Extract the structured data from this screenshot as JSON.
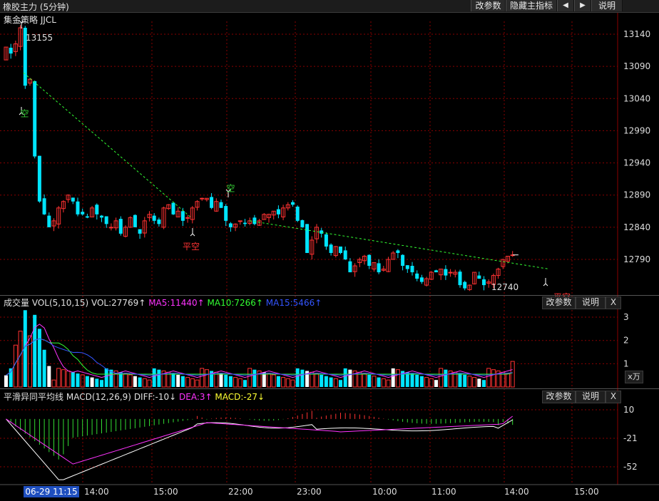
{
  "window": {
    "title": "橡胶主力 (5分钟)"
  },
  "toolbar": {
    "params_label": "改参数",
    "hide_label": "隐藏主指标",
    "left_arrow": "◀",
    "right_arrow": "▶",
    "help_label": "说明"
  },
  "main_panel": {
    "strategy_label": "集金策略 JJCL",
    "y_ticks": [
      "13140",
      "13090",
      "13040",
      "12990",
      "12940",
      "12890",
      "12840",
      "12790"
    ],
    "high_label": "13155",
    "low_label": "12740",
    "annotations": [
      {
        "text": "空",
        "color": "#33cc33"
      },
      {
        "text": "平空",
        "color": "#ff3333"
      },
      {
        "text": "空",
        "color": "#33cc33"
      },
      {
        "text": "平空",
        "color": "#ff3333"
      }
    ]
  },
  "volume_panel": {
    "name": "成交量",
    "formula": "VOL(5,10,15)",
    "vol": "VOL:27769↑",
    "ma5": "MA5:11440↑",
    "ma10": "MA10:7266↑",
    "ma15": "MA15:5466↑",
    "y_ticks": [
      "3",
      "2",
      "1"
    ],
    "unit_label": "x万",
    "params_label": "改参数",
    "help_label": "说明",
    "close_label": "X"
  },
  "macd_panel": {
    "name": "平滑异同平均线",
    "formula": "MACD(12,26,9)",
    "diff": "DIFF:-10↓",
    "dea": "DEA:3↑",
    "macd": "MACD:-27↓",
    "y_ticks": [
      "10",
      "-21",
      "-52"
    ],
    "params_label": "改参数",
    "help_label": "说明",
    "close_label": "X"
  },
  "time_axis": {
    "cursor_label": "06-29 11:15",
    "labels": [
      "14:00",
      "15:00",
      "22:00",
      "23:00",
      "10:00",
      "11:00",
      "14:00",
      "15:00"
    ]
  },
  "colors": {
    "up": "#ff3232",
    "down": "#00e5ff",
    "ma5": "#ff33ff",
    "ma10": "#33ff33",
    "ma15": "#3355ff",
    "diff": "#ffffff",
    "dea": "#ff33ff",
    "grid": "#8b0000"
  },
  "chart_data": {
    "type": "candlestick",
    "interval": "5分钟",
    "closes": [
      13120,
      13110,
      13125,
      13150,
      13060,
      13070,
      12950,
      12880,
      12860,
      12840,
      12850,
      12870,
      12880,
      12890,
      12880,
      12860,
      12860,
      12855,
      12870,
      12860,
      12855,
      12845,
      12840,
      12850,
      12830,
      12840,
      12855,
      12840,
      12830,
      12850,
      12860,
      12850,
      12845,
      12870,
      12875,
      12860,
      12865,
      12850,
      12855,
      12870,
      12880,
      12885,
      12885,
      12870,
      12880,
      12870,
      12850,
      12840,
      12845,
      12850,
      12845,
      12850,
      12845,
      12850,
      12860,
      12860,
      12865,
      12860,
      12870,
      12875,
      12875,
      12850,
      12840,
      12800,
      12820,
      12840,
      12830,
      12810,
      12800,
      12810,
      12800,
      12790,
      12770,
      12780,
      12790,
      12795,
      12780,
      12785,
      12770,
      12775,
      12790,
      12800,
      12800,
      12780,
      12775,
      12770,
      12760,
      12755,
      12760,
      12770,
      12770,
      12775,
      12765,
      12770,
      12770,
      12750,
      12745,
      12750,
      12770,
      12760,
      12750,
      12755,
      12765,
      12775,
      12790,
      12795,
      12797
    ],
    "volume_unit": "万",
    "volume_ticks": [
      1,
      2,
      3
    ],
    "last_volume": 27769,
    "ma5": 11440,
    "ma10": 7266,
    "ma15": 5466,
    "macd_ticks": [
      10,
      -21,
      -52
    ],
    "diff": -10,
    "dea": 3,
    "macd": -27
  }
}
